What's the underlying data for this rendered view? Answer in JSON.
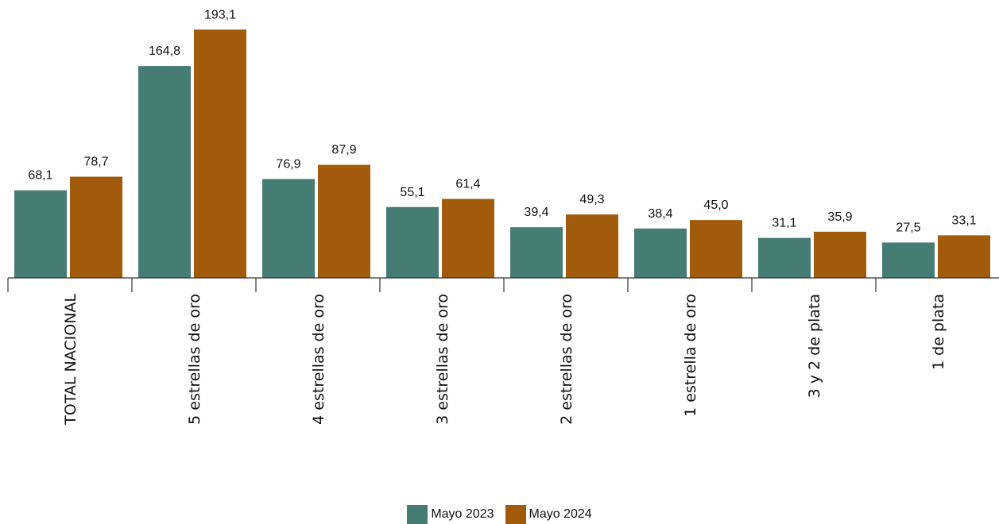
{
  "colors": {
    "series1": "#457c73",
    "series2": "#a25a0b",
    "axis": "#333333"
  },
  "chart_data": {
    "type": "bar",
    "title": "",
    "xlabel": "",
    "ylabel": "",
    "ylim": [
      0,
      205
    ],
    "categories": [
      "TOTAL NACIONAL",
      "5 estrellas de oro",
      "4 estrellas de oro",
      "3 estrellas de oro",
      "2 estrellas de oro",
      "1 estrella de oro",
      "3 y 2 de plata",
      "1 de plata"
    ],
    "series": [
      {
        "name": "Mayo 2023",
        "values": [
          68.1,
          164.8,
          76.9,
          55.1,
          39.4,
          38.4,
          31.1,
          27.5
        ],
        "labels": [
          "68,1",
          "164,8",
          "76,9",
          "55,1",
          "39,4",
          "38,4",
          "31,1",
          "27,5"
        ]
      },
      {
        "name": "Mayo 2024",
        "values": [
          78.7,
          193.1,
          87.9,
          61.4,
          49.3,
          45.0,
          35.9,
          33.1
        ],
        "labels": [
          "78,7",
          "193,1",
          "87,9",
          "61,4",
          "49,3",
          "45,0",
          "35,9",
          "33,1"
        ]
      }
    ],
    "legend_position": "bottom",
    "grid": false
  }
}
